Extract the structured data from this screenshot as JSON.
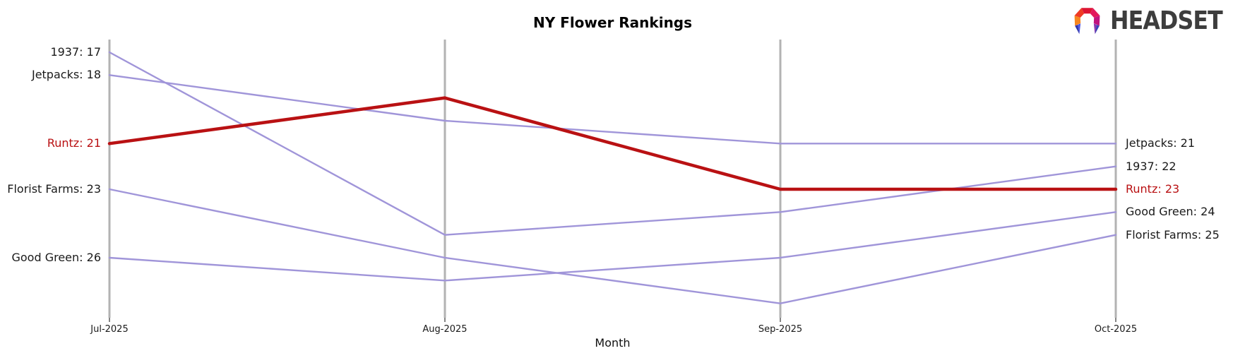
{
  "header": {
    "logo_text": "HEADSET"
  },
  "colors": {
    "highlight": "#b91113",
    "line": "#a095d9",
    "axis": "#b3b3b3",
    "tick": "#333333",
    "text": "#1a1a1a",
    "logo_text": "#3d3d3d"
  },
  "chart_data": {
    "type": "line",
    "subtype": "bump-ranking",
    "title": "NY Flower Rankings",
    "xlabel": "Month",
    "x": [
      "Jul-2025",
      "Aug-2025",
      "Sep-2025",
      "Oct-2025"
    ],
    "y_axis": {
      "metric": "rank",
      "inverted": true,
      "best_at_top": true
    },
    "grid": "vertical month axes only",
    "legend": "none (direct labels at line endpoints)",
    "series": [
      {
        "name": "1937",
        "values": [
          17,
          25,
          24,
          22
        ],
        "highlight": false,
        "label_left": "1937: 17",
        "label_right": "1937: 22"
      },
      {
        "name": "Jetpacks",
        "values": [
          18,
          20,
          21,
          21
        ],
        "highlight": false,
        "label_left": "Jetpacks: 18",
        "label_right": "Jetpacks: 21"
      },
      {
        "name": "Runtz",
        "values": [
          21,
          19,
          23,
          23
        ],
        "highlight": true,
        "label_left": "Runtz: 21",
        "label_right": "Runtz: 23"
      },
      {
        "name": "Florist Farms",
        "values": [
          23,
          26,
          28,
          25
        ],
        "highlight": false,
        "label_left": "Florist Farms: 23",
        "label_right": "Florist Farms: 25"
      },
      {
        "name": "Good Green",
        "values": [
          26,
          27,
          26,
          24
        ],
        "highlight": false,
        "label_left": "Good Green: 26",
        "label_right": "Good Green: 24"
      }
    ]
  }
}
